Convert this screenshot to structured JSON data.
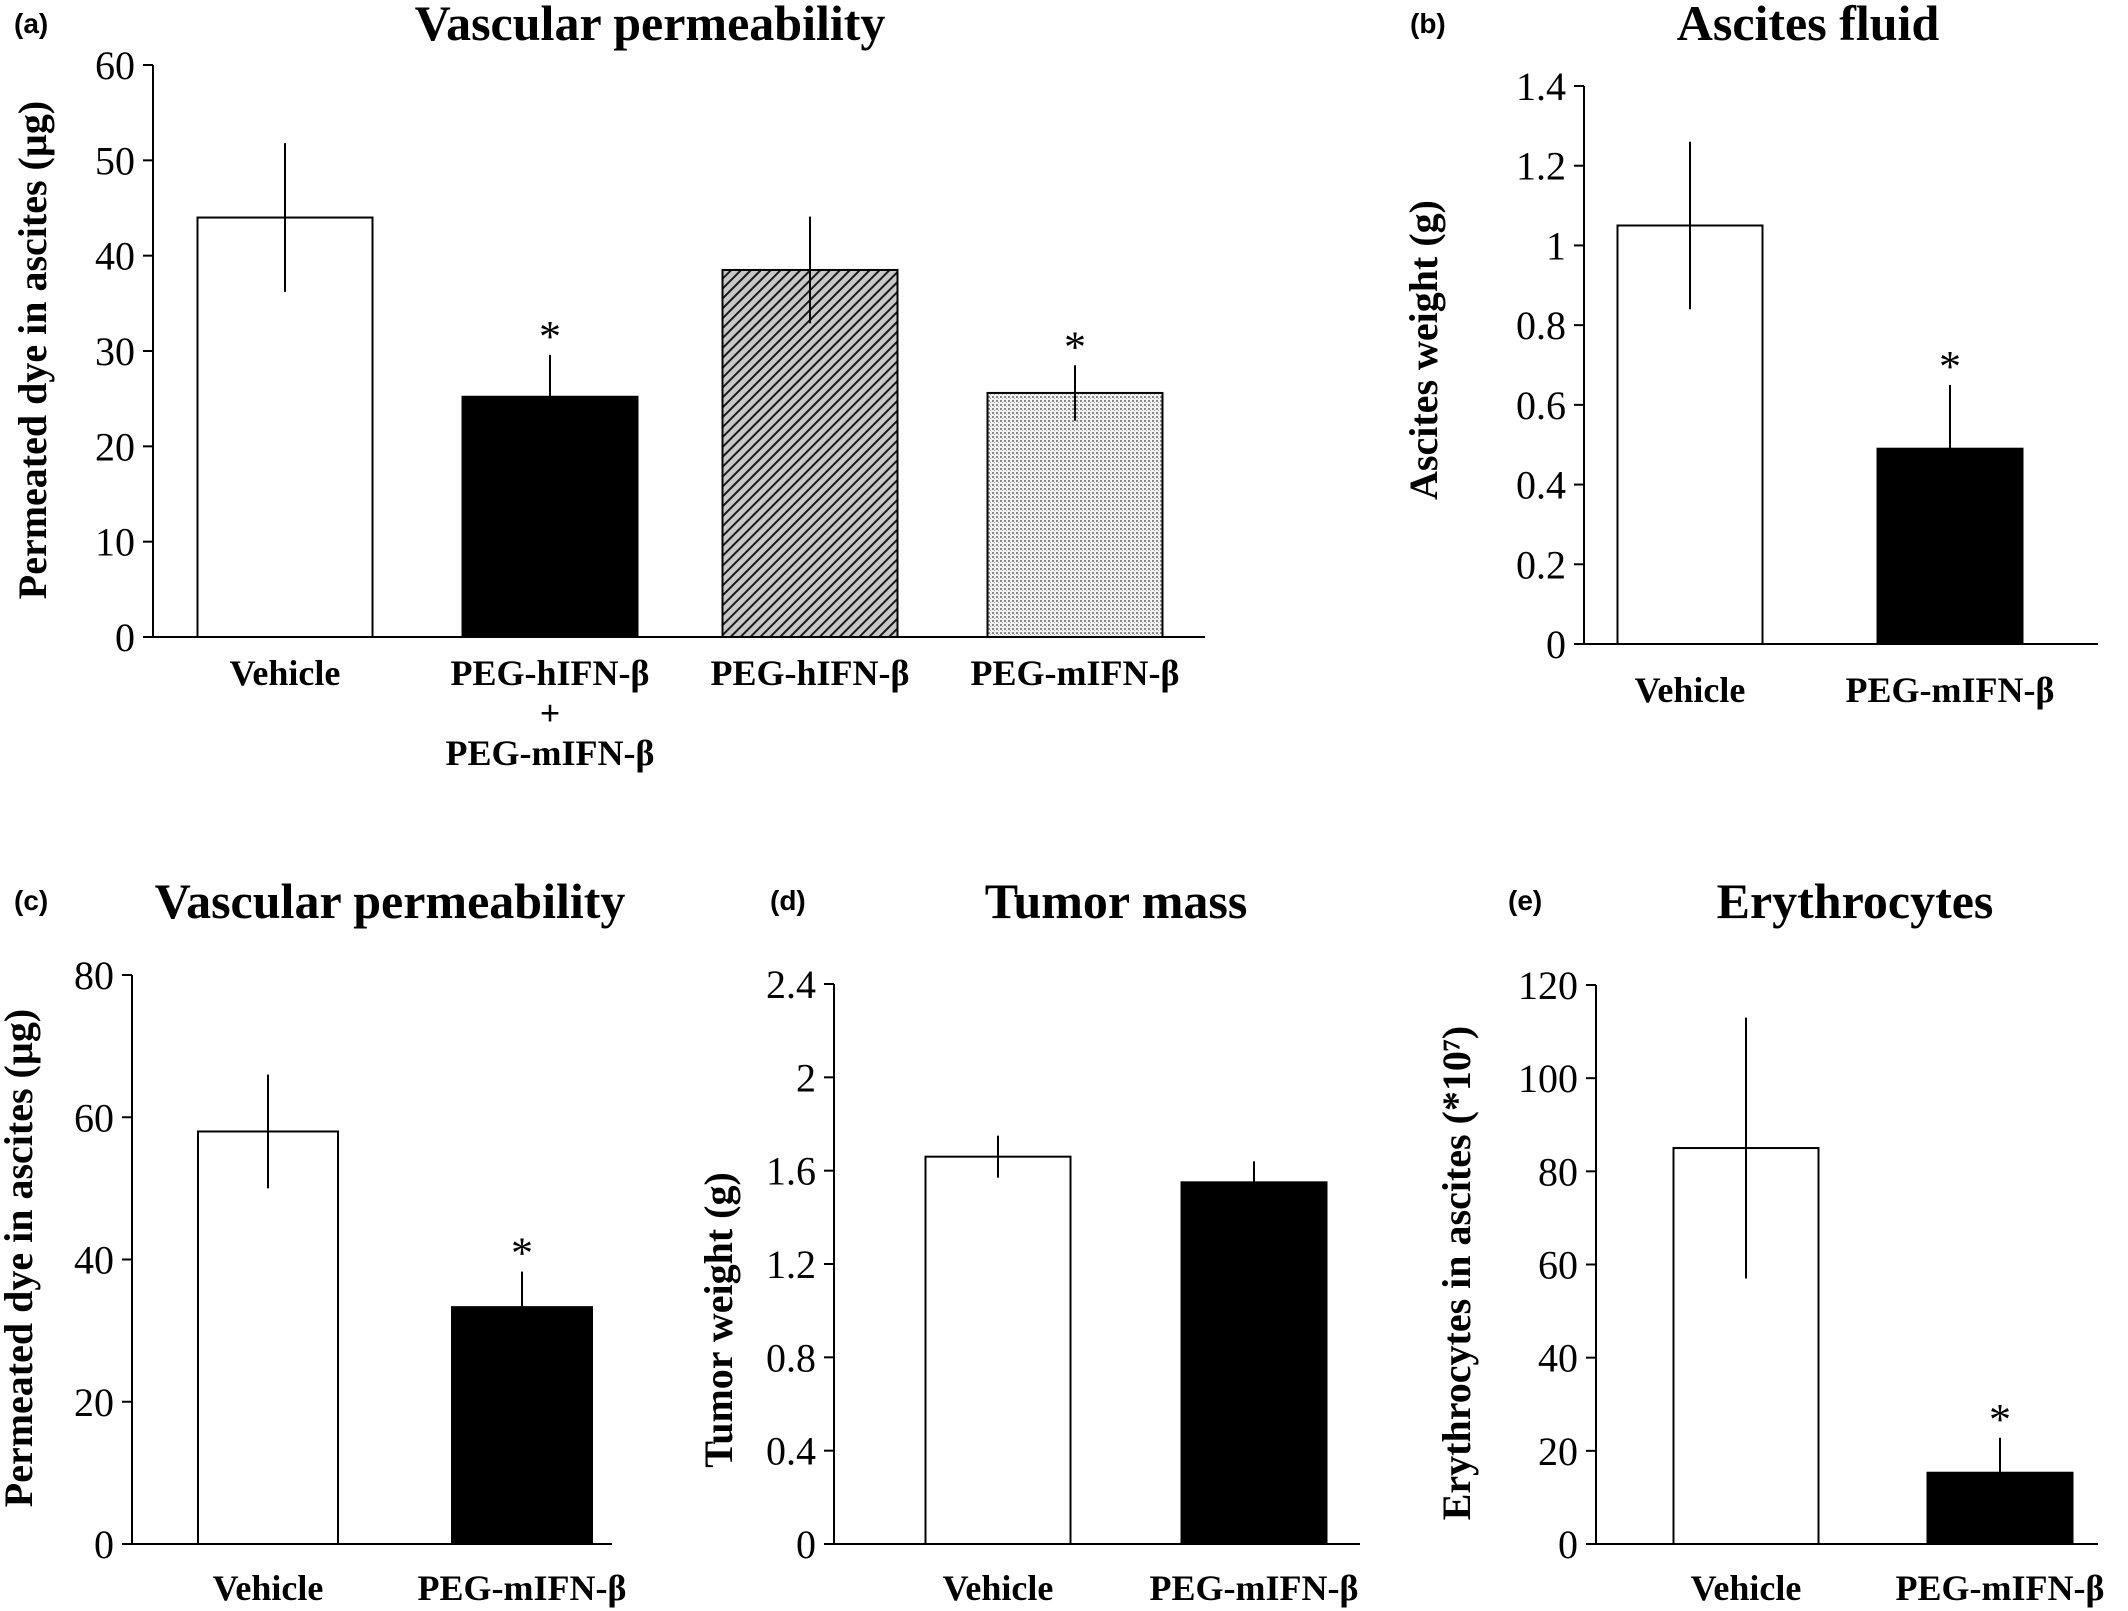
{
  "chart_data": [
    {
      "panel": "(a)",
      "type": "bar",
      "title": "Vascular permeability",
      "xlabel": "",
      "ylabel": "Permeated dye in ascites (µg)",
      "ylim": [
        0,
        60
      ],
      "yticks": [
        "0",
        "10",
        "20",
        "30",
        "40",
        "50",
        "60"
      ],
      "categories": [
        [
          "Vehicle"
        ],
        [
          "PEG-hIFN-β",
          "+",
          "PEG-mIFN-β"
        ],
        [
          "PEG-hIFN-β"
        ],
        [
          "PEG-mIFN-β"
        ]
      ],
      "values": [
        44,
        25.2,
        38.5,
        25.6
      ],
      "errors": [
        7.8,
        4.4,
        5.6,
        2.9
      ],
      "fills": [
        "white",
        "black",
        "dark-hatch",
        "light-dots"
      ],
      "significance": [
        "",
        "*",
        "",
        "*"
      ]
    },
    {
      "panel": "(b)",
      "type": "bar",
      "title": "Ascites fluid",
      "xlabel": "",
      "ylabel": "Ascites weight (g)",
      "ylim": [
        0,
        1.4
      ],
      "yticks": [
        "0",
        "0.2",
        "0.4",
        "0.6",
        "0.8",
        "1",
        "1.2",
        "1.4"
      ],
      "categories": [
        [
          "Vehicle"
        ],
        [
          "PEG-mIFN-β"
        ]
      ],
      "values": [
        1.05,
        0.49
      ],
      "errors": [
        0.21,
        0.16
      ],
      "fills": [
        "white",
        "black"
      ],
      "significance": [
        "",
        "*"
      ]
    },
    {
      "panel": "(c)",
      "type": "bar",
      "title": "Vascular permeability",
      "xlabel": "",
      "ylabel": "Permeated dye in ascites (µg)",
      "ylim": [
        0,
        80
      ],
      "yticks": [
        "0",
        "20",
        "40",
        "60",
        "80"
      ],
      "categories": [
        [
          "Vehicle"
        ],
        [
          "PEG-mIFN-β"
        ]
      ],
      "values": [
        58,
        33.3
      ],
      "errors": [
        8,
        5
      ],
      "fills": [
        "white",
        "black"
      ],
      "significance": [
        "",
        "*"
      ]
    },
    {
      "panel": "(d)",
      "type": "bar",
      "title": "Tumor mass",
      "xlabel": "",
      "ylabel": "Tumor weight (g)",
      "ylim": [
        0,
        2.4
      ],
      "yticks": [
        "0",
        "0.4",
        "0.8",
        "1.2",
        "1.6",
        "2",
        "2.4"
      ],
      "categories": [
        [
          "Vehicle"
        ],
        [
          "PEG-mIFN-β"
        ]
      ],
      "values": [
        1.66,
        1.55
      ],
      "errors": [
        0.09,
        0.09
      ],
      "fills": [
        "white",
        "black"
      ],
      "significance": [
        "",
        ""
      ]
    },
    {
      "panel": "(e)",
      "type": "bar",
      "title": "Erythrocytes",
      "xlabel": "",
      "ylabel": "Erythrocytes in ascites (*10⁷)",
      "ylim": [
        0,
        120
      ],
      "yticks": [
        "0",
        "20",
        "40",
        "60",
        "80",
        "100",
        "120"
      ],
      "categories": [
        [
          "Vehicle"
        ],
        [
          "PEG-mIFN-β"
        ]
      ],
      "values": [
        85,
        15.3
      ],
      "errors": [
        28,
        7.5
      ],
      "fills": [
        "white",
        "black"
      ],
      "significance": [
        "",
        "*"
      ]
    }
  ]
}
